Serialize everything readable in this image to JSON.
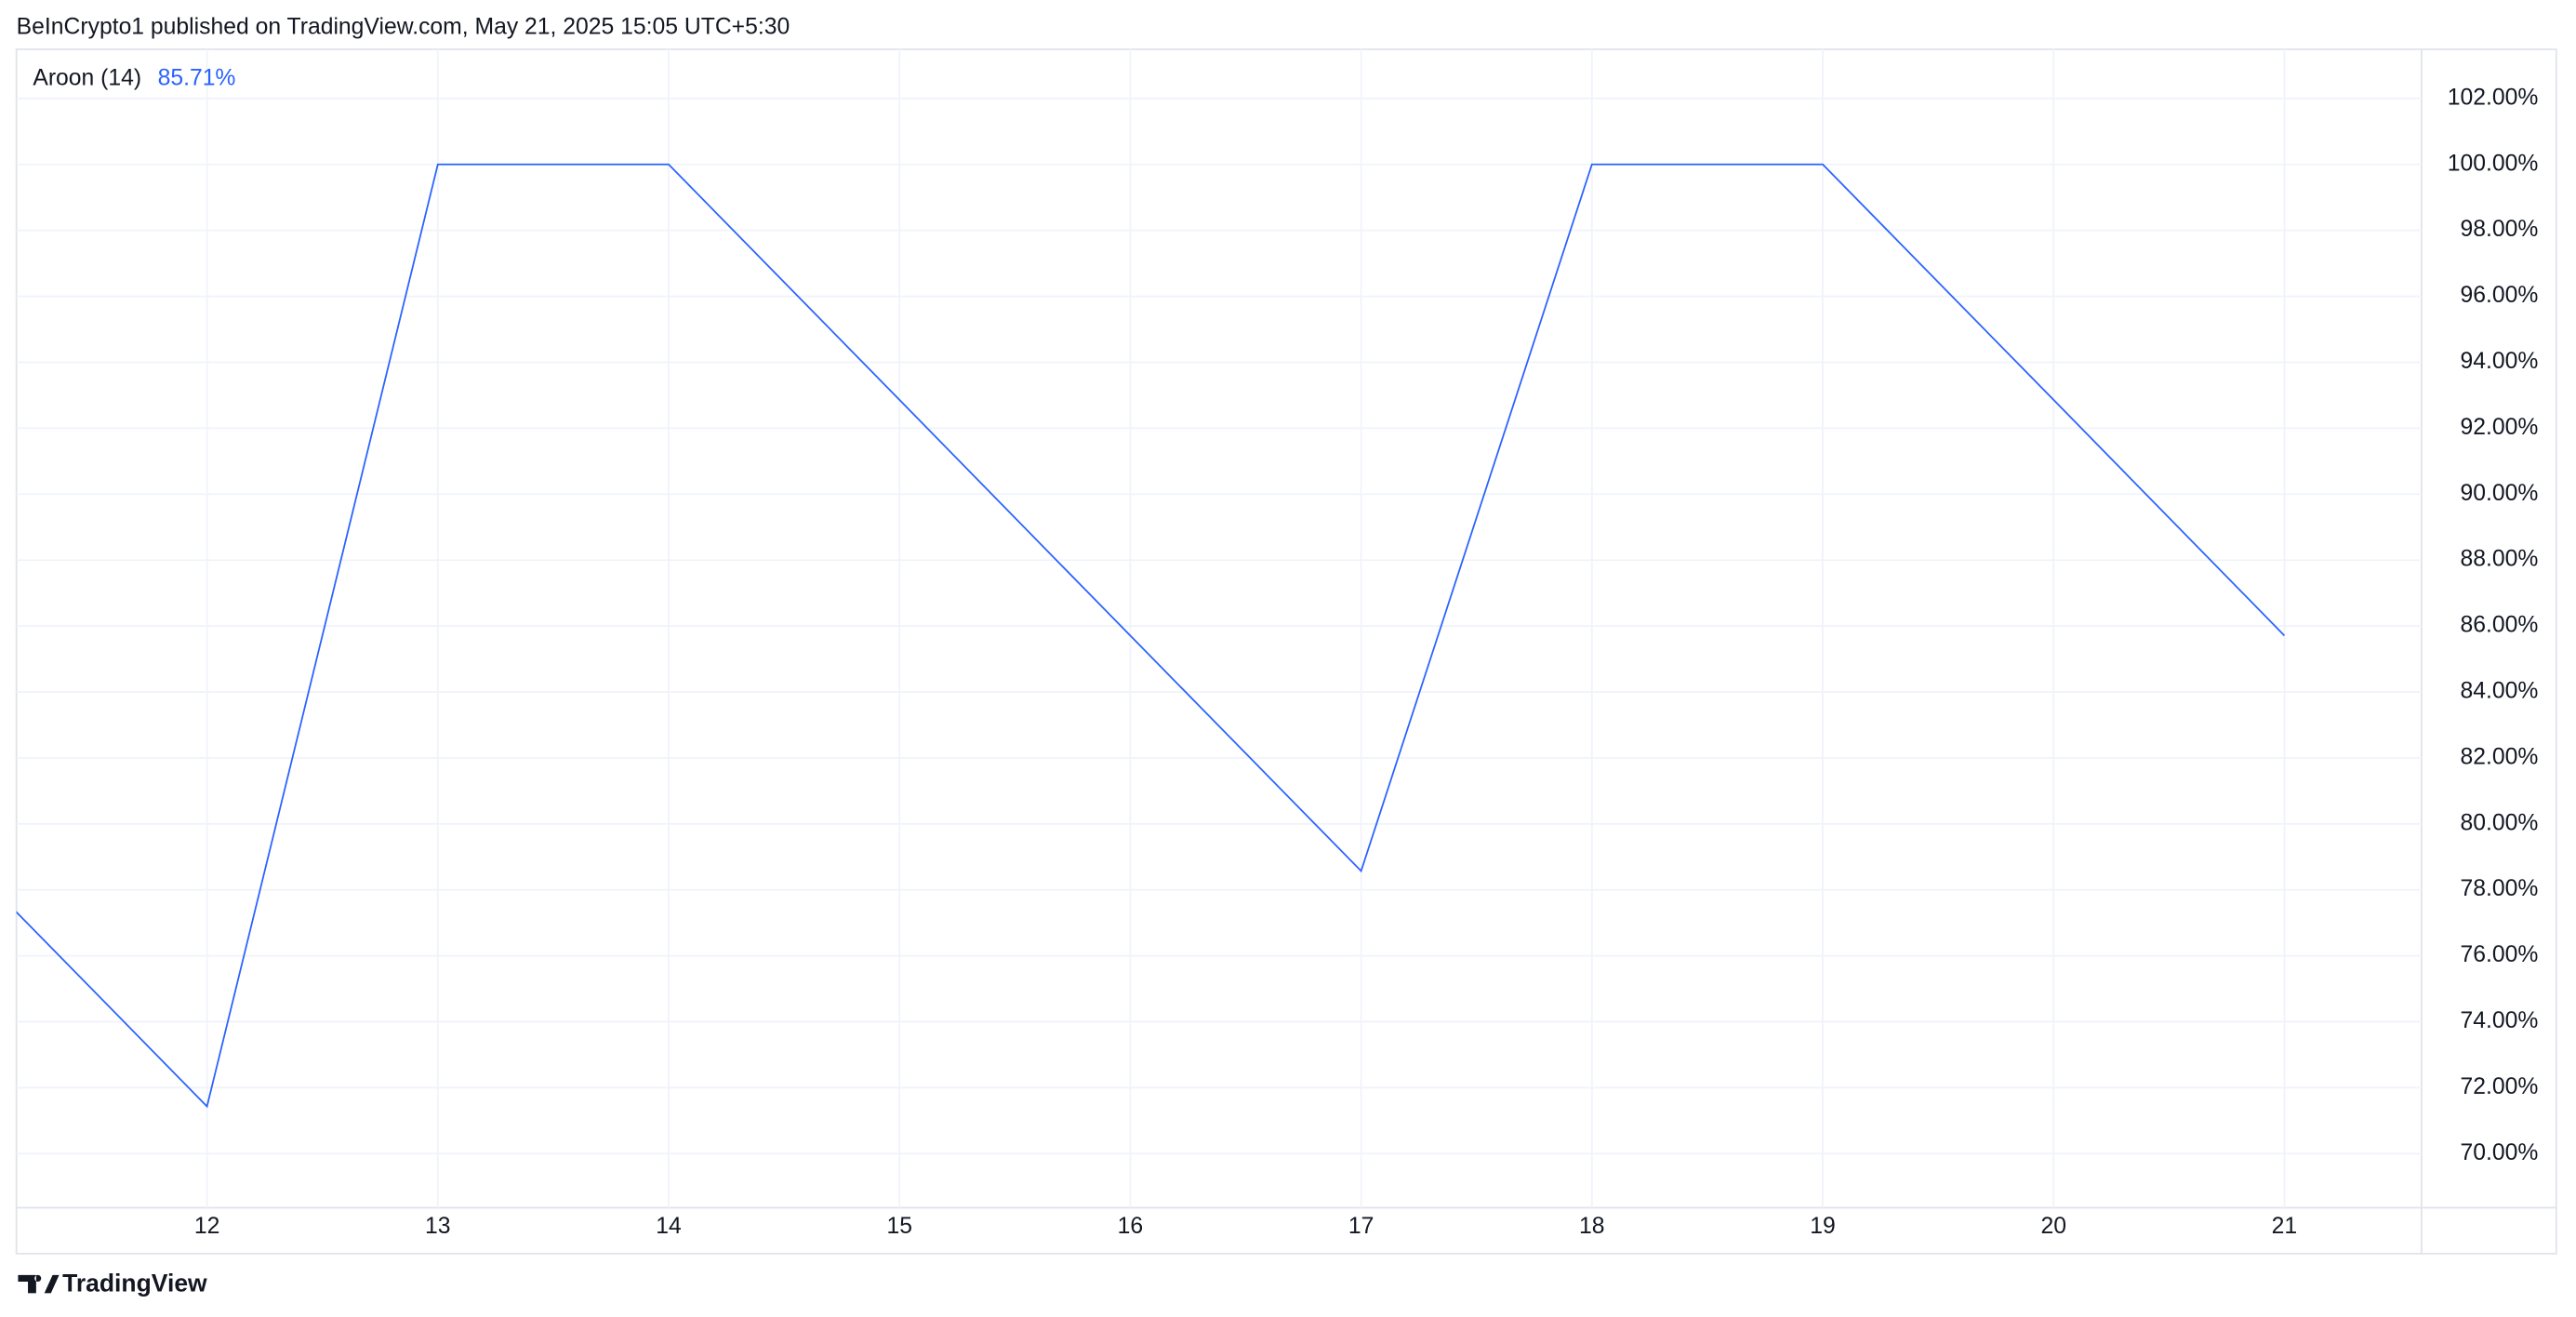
{
  "header": {
    "text": "BeInCrypto1 published on TradingView.com, May 21, 2025 15:05 UTC+5:30"
  },
  "chart_data": {
    "type": "line",
    "categories": [
      null,
      "12",
      "13",
      "14",
      "15",
      "16",
      "17",
      "18",
      "19",
      "20",
      "21"
    ],
    "series": [
      {
        "name": "Aroon (14)",
        "color": "#2962ff",
        "values": [
          78.57,
          71.43,
          100,
          100,
          92.86,
          85.71,
          78.57,
          100,
          100,
          92.86,
          85.71
        ],
        "last_value_label": "85.71%"
      }
    ],
    "ylim": [
      68.36,
      103.49
    ],
    "yticks": [
      {
        "value": 70,
        "label": "70.00%"
      },
      {
        "value": 72,
        "label": "72.00%"
      },
      {
        "value": 74,
        "label": "74.00%"
      },
      {
        "value": 76,
        "label": "76.00%"
      },
      {
        "value": 78,
        "label": "78.00%"
      },
      {
        "value": 80,
        "label": "80.00%"
      },
      {
        "value": 82,
        "label": "82.00%"
      },
      {
        "value": 84,
        "label": "84.00%"
      },
      {
        "value": 86,
        "label": "86.00%"
      },
      {
        "value": 88,
        "label": "88.00%"
      },
      {
        "value": 90,
        "label": "90.00%"
      },
      {
        "value": 92,
        "label": "92.00%"
      },
      {
        "value": 94,
        "label": "94.00%"
      },
      {
        "value": 96,
        "label": "96.00%"
      },
      {
        "value": 98,
        "label": "98.00%"
      },
      {
        "value": 100,
        "label": "100.00%"
      },
      {
        "value": 102,
        "label": "102.00%"
      }
    ],
    "grid": true
  },
  "footer": {
    "logo": "TradingView"
  }
}
